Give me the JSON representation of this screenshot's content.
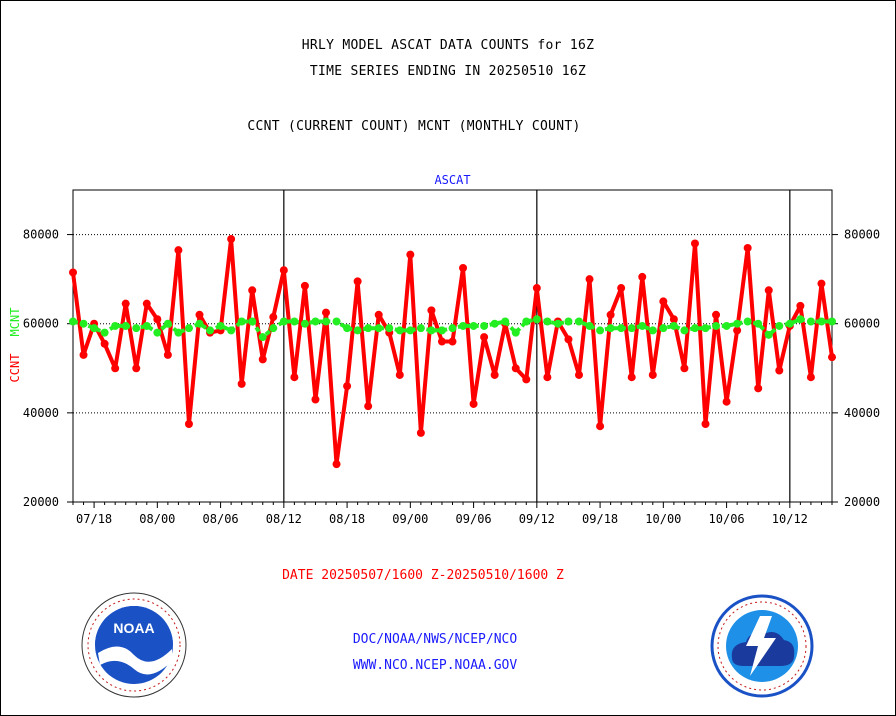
{
  "title_line1": "HRLY MODEL ASCAT DATA COUNTS for 16Z",
  "title_line2": "TIME SERIES ENDING IN 20250510 16Z",
  "subtitle": "CCNT (CURRENT COUNT) MCNT (MONTHLY COUNT)",
  "date_range": "DATE 20250507/1600 Z-20250510/1600 Z",
  "footer_line1": "DOC/NOAA/NWS/NCEP/NCO",
  "footer_line2": "WWW.NCO.NCEP.NOAA.GOV",
  "logos": {
    "left": {
      "icon": "noaa-logo",
      "text": "NOAA"
    },
    "right": {
      "icon": "nws-logo"
    }
  },
  "colors": {
    "ccnt": "#ff0000",
    "mcnt": "#22ee22",
    "label_blue": "#1a1aff",
    "grid": "#000000"
  },
  "chart_data": {
    "type": "line",
    "title": "ASCAT",
    "ylabel_ccnt": "CCNT",
    "ylabel_mcnt": "MCNT",
    "ylim": [
      20000,
      90000
    ],
    "yticks": [
      20000,
      40000,
      60000,
      80000
    ],
    "ytick_labels": [
      "20000",
      "40000",
      "60000",
      "80000"
    ],
    "xtick_labels": [
      "07/18",
      "08/00",
      "08/06",
      "08/12",
      "08/18",
      "09/00",
      "09/06",
      "09/12",
      "09/18",
      "10/00",
      "10/06",
      "10/12"
    ],
    "xtick_positions": [
      2,
      8,
      14,
      20,
      26,
      32,
      38,
      44,
      50,
      56,
      62,
      68
    ],
    "day_boundaries": [
      20,
      44,
      68
    ],
    "grid_y": true,
    "x": [
      0,
      1,
      2,
      3,
      4,
      5,
      6,
      7,
      8,
      9,
      10,
      11,
      12,
      13,
      14,
      15,
      16,
      17,
      18,
      19,
      20,
      21,
      22,
      23,
      24,
      25,
      26,
      27,
      28,
      29,
      30,
      31,
      32,
      33,
      34,
      35,
      36,
      37,
      38,
      39,
      40,
      41,
      42,
      43,
      44,
      45,
      46,
      47,
      48,
      49,
      50,
      51,
      52,
      53,
      54,
      55,
      56,
      57,
      58,
      59,
      60,
      61,
      62,
      63,
      64,
      65,
      66,
      67,
      68,
      69,
      70,
      71,
      72
    ],
    "series": [
      {
        "name": "CCNT",
        "values": [
          71500,
          53000,
          60000,
          55500,
          50000,
          64500,
          50000,
          64500,
          61000,
          53000,
          76500,
          37500,
          62000,
          58000,
          58500,
          79000,
          46500,
          67500,
          52000,
          61500,
          72000,
          48000,
          68500,
          43000,
          62500,
          28500,
          46000,
          69500,
          41500,
          62000,
          58000,
          48500,
          75500,
          35500,
          63000,
          56000,
          56000,
          72500,
          42000,
          57000,
          48500,
          60000,
          50000,
          47500,
          68000,
          48000,
          60500,
          56500,
          48500,
          70000,
          37000,
          62000,
          68000,
          48000,
          70500,
          48500,
          65000,
          61000,
          50000,
          78000,
          37500,
          62000,
          42500,
          58500,
          77000,
          45500,
          67500,
          49500,
          59500,
          64000,
          48000,
          69000,
          52500
        ]
      },
      {
        "name": "MCNT",
        "values": [
          60500,
          60000,
          59000,
          58000,
          59500,
          59500,
          59000,
          59500,
          58000,
          60000,
          58000,
          59000,
          60000,
          58500,
          59500,
          58500,
          60500,
          60500,
          57000,
          59000,
          60500,
          60500,
          60000,
          60500,
          60500,
          60500,
          59000,
          58500,
          59000,
          59000,
          59000,
          58500,
          58500,
          59000,
          58500,
          58500,
          59000,
          59500,
          59500,
          59500,
          60000,
          60500,
          58000,
          60500,
          61000,
          60500,
          60000,
          60500,
          60500,
          59500,
          58500,
          59000,
          59000,
          59000,
          59500,
          58500,
          59000,
          59500,
          58500,
          59000,
          59000,
          59500,
          59500,
          60000,
          60500,
          60000,
          57500,
          59500,
          60000,
          61000,
          60500,
          60500,
          60500
        ]
      }
    ]
  }
}
